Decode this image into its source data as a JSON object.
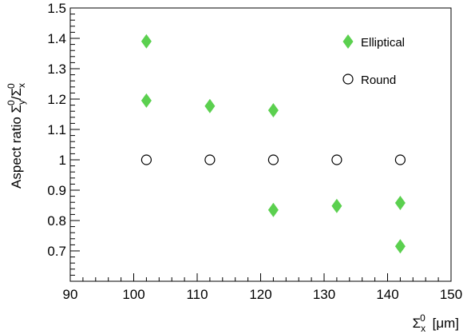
{
  "chart_data": {
    "type": "scatter",
    "title": "",
    "xlabel": "Σx0 [μm]",
    "ylabel": "Aspect ratio Σy0/Σx0",
    "xlim": [
      90,
      150
    ],
    "ylim": [
      0.6,
      1.5
    ],
    "xticks": [
      90,
      100,
      110,
      120,
      130,
      140,
      150
    ],
    "yticks": [
      0.7,
      0.8,
      0.9,
      1,
      1.1,
      1.2,
      1.3,
      1.4,
      1.5
    ],
    "xtick_labels": [
      "90",
      "100",
      "110",
      "120",
      "130",
      "140",
      "150"
    ],
    "ytick_labels": [
      "0.7",
      "0.8",
      "0.9",
      "1",
      "1.1",
      "1.2",
      "1.3",
      "1.4",
      "1.5"
    ],
    "grid": false,
    "legend_position": "top-right",
    "series": [
      {
        "name": "Elliptical",
        "marker": "diamond",
        "color": "#5bd04f",
        "x": [
          102,
          102,
          112,
          122,
          122,
          132,
          142,
          142
        ],
        "y": [
          1.39,
          1.195,
          1.177,
          1.163,
          0.835,
          0.848,
          0.858,
          0.715
        ]
      },
      {
        "name": "Round",
        "marker": "open-circle",
        "color": "#000000",
        "x": [
          102,
          112,
          122,
          132,
          142
        ],
        "y": [
          1.0,
          1.0,
          1.0,
          1.0,
          1.0
        ]
      }
    ]
  }
}
